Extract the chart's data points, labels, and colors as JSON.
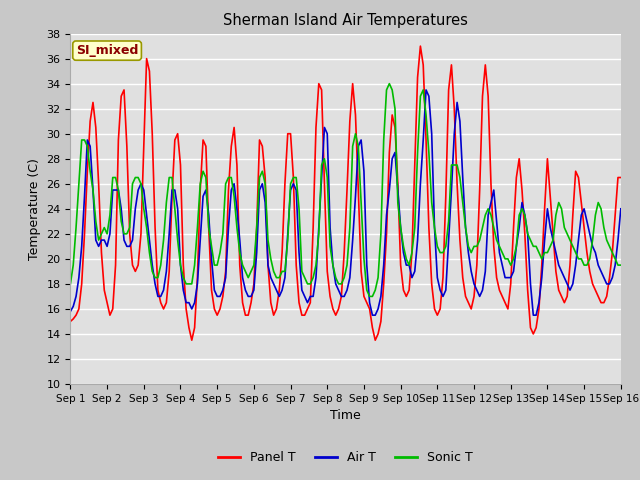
{
  "title": "Sherman Island Air Temperatures",
  "xlabel": "Time",
  "ylabel": "Temperature (C)",
  "ylim": [
    10,
    38
  ],
  "yticks": [
    10,
    12,
    14,
    16,
    18,
    20,
    22,
    24,
    26,
    28,
    30,
    32,
    34,
    36,
    38
  ],
  "xtick_labels": [
    "Sep 1",
    "Sep 2",
    "Sep 3",
    "Sep 4",
    "Sep 5",
    "Sep 6",
    "Sep 7",
    "Sep 8",
    "Sep 9",
    "Sep 10",
    "Sep 11",
    "Sep 12",
    "Sep 13",
    "Sep 14",
    "Sep 15",
    "Sep 16"
  ],
  "annotation_text": "SI_mixed",
  "annotation_color": "#8B0000",
  "annotation_bg": "#FFFFCC",
  "annotation_edge": "#999900",
  "colors": {
    "panel_t": "#FF0000",
    "air_t": "#0000CD",
    "sonic_t": "#00BB00"
  },
  "legend_labels": [
    "Panel T",
    "Air T",
    "Sonic T"
  ],
  "fig_bg": "#C8C8C8",
  "plot_bg": "#E0E0E0",
  "grid_color": "#FFFFFF",
  "line_width": 1.2,
  "panel_t": [
    15.0,
    15.2,
    15.5,
    16.0,
    18.0,
    22.0,
    27.0,
    31.0,
    32.5,
    30.5,
    26.0,
    20.5,
    17.5,
    16.5,
    15.5,
    16.0,
    19.5,
    29.5,
    33.0,
    33.5,
    29.0,
    22.0,
    19.5,
    19.0,
    19.5,
    22.0,
    29.0,
    36.0,
    35.0,
    30.0,
    22.5,
    17.5,
    16.5,
    16.0,
    16.5,
    19.0,
    25.0,
    29.5,
    30.0,
    27.5,
    19.5,
    16.0,
    14.5,
    13.5,
    14.5,
    18.5,
    25.5,
    29.5,
    29.0,
    22.5,
    17.5,
    16.0,
    15.5,
    16.0,
    17.0,
    19.0,
    25.5,
    29.0,
    30.5,
    27.5,
    19.5,
    16.5,
    15.5,
    15.5,
    16.5,
    18.0,
    22.5,
    29.5,
    29.0,
    26.5,
    19.5,
    16.5,
    15.5,
    16.0,
    17.5,
    20.5,
    26.0,
    30.0,
    30.0,
    26.5,
    19.5,
    16.5,
    15.5,
    15.5,
    16.0,
    16.5,
    22.5,
    30.5,
    34.0,
    33.5,
    26.0,
    19.0,
    17.0,
    16.0,
    15.5,
    16.0,
    17.0,
    20.5,
    25.5,
    31.0,
    34.0,
    31.5,
    25.5,
    19.0,
    17.0,
    16.5,
    16.0,
    14.5,
    13.5,
    14.0,
    15.0,
    18.0,
    22.0,
    28.5,
    31.5,
    30.5,
    26.0,
    19.5,
    17.5,
    17.0,
    17.5,
    20.5,
    27.5,
    34.5,
    37.0,
    35.5,
    29.5,
    22.5,
    18.0,
    16.0,
    15.5,
    16.0,
    18.5,
    25.0,
    33.5,
    35.5,
    32.0,
    26.0,
    21.5,
    18.5,
    17.0,
    16.5,
    16.0,
    17.0,
    19.5,
    25.5,
    33.0,
    35.5,
    33.0,
    26.0,
    21.0,
    18.5,
    17.5,
    17.0,
    16.5,
    16.0,
    18.0,
    22.5,
    26.5,
    28.0,
    25.5,
    22.0,
    17.5,
    14.5,
    14.0,
    14.5,
    16.0,
    19.5,
    24.0,
    28.0,
    25.0,
    22.0,
    19.0,
    17.5,
    17.0,
    16.5,
    17.0,
    19.5,
    23.5,
    27.0,
    26.5,
    24.5,
    22.5,
    20.5,
    19.0,
    18.0,
    17.5,
    17.0,
    16.5,
    16.5,
    17.0,
    18.5,
    20.5,
    23.5,
    26.5,
    26.5
  ],
  "air_t": [
    15.8,
    16.2,
    17.0,
    18.5,
    21.0,
    25.0,
    29.5,
    29.0,
    25.5,
    21.5,
    21.0,
    21.5,
    21.5,
    21.0,
    22.0,
    25.5,
    25.5,
    25.5,
    24.0,
    21.5,
    21.0,
    21.0,
    21.5,
    24.0,
    25.5,
    26.0,
    25.5,
    23.5,
    21.5,
    19.5,
    18.0,
    17.0,
    17.0,
    17.5,
    19.0,
    22.0,
    25.5,
    25.5,
    24.0,
    19.5,
    17.5,
    16.5,
    16.5,
    16.0,
    16.5,
    18.0,
    21.5,
    25.0,
    25.5,
    23.5,
    20.0,
    17.5,
    17.0,
    17.0,
    17.5,
    18.5,
    22.5,
    25.5,
    26.0,
    24.0,
    21.5,
    18.5,
    17.5,
    17.0,
    17.0,
    17.5,
    20.5,
    25.5,
    26.0,
    24.5,
    19.5,
    18.5,
    18.0,
    17.5,
    17.0,
    17.5,
    18.5,
    22.0,
    25.5,
    26.0,
    25.5,
    20.5,
    17.5,
    17.0,
    16.5,
    17.0,
    17.0,
    18.5,
    22.5,
    26.5,
    30.5,
    30.0,
    22.5,
    19.5,
    18.0,
    17.5,
    17.0,
    17.0,
    17.5,
    18.5,
    21.5,
    25.0,
    29.0,
    29.5,
    27.0,
    19.5,
    16.5,
    15.5,
    15.5,
    16.0,
    17.0,
    19.5,
    23.5,
    25.5,
    28.0,
    28.5,
    25.5,
    22.5,
    20.5,
    19.5,
    19.5,
    18.5,
    19.0,
    21.5,
    26.0,
    29.5,
    33.5,
    33.0,
    30.0,
    22.5,
    18.5,
    17.5,
    17.0,
    17.5,
    21.5,
    25.5,
    30.0,
    32.5,
    31.0,
    26.5,
    22.5,
    20.5,
    19.0,
    18.0,
    17.5,
    17.0,
    17.5,
    19.0,
    23.5,
    24.5,
    25.5,
    23.0,
    20.5,
    19.5,
    18.5,
    18.5,
    18.5,
    19.0,
    21.0,
    22.5,
    24.5,
    23.5,
    22.0,
    18.0,
    15.5,
    15.5,
    16.5,
    18.5,
    21.5,
    24.0,
    22.5,
    21.5,
    20.5,
    19.5,
    19.0,
    18.5,
    18.0,
    17.5,
    18.0,
    19.5,
    21.5,
    23.5,
    24.0,
    23.0,
    22.0,
    21.0,
    20.5,
    19.5,
    19.0,
    18.5,
    18.0,
    18.0,
    18.5,
    19.5,
    21.5,
    24.0
  ],
  "sonic_t": [
    18.0,
    19.5,
    22.5,
    26.0,
    29.5,
    29.5,
    29.0,
    27.0,
    25.5,
    23.0,
    21.5,
    22.0,
    22.5,
    22.0,
    23.5,
    26.5,
    26.5,
    25.5,
    23.0,
    22.0,
    22.0,
    22.5,
    26.0,
    26.5,
    26.5,
    26.0,
    24.0,
    22.5,
    20.5,
    19.0,
    18.5,
    18.5,
    19.5,
    21.5,
    24.5,
    26.5,
    26.5,
    24.0,
    21.5,
    19.5,
    18.5,
    18.0,
    18.0,
    18.0,
    19.5,
    22.5,
    26.0,
    27.0,
    26.5,
    22.5,
    21.0,
    19.5,
    19.5,
    20.5,
    22.0,
    26.0,
    26.5,
    26.5,
    25.0,
    22.5,
    20.5,
    19.5,
    19.0,
    18.5,
    19.0,
    19.5,
    22.5,
    26.5,
    27.0,
    26.0,
    21.5,
    20.0,
    19.0,
    18.5,
    18.5,
    19.0,
    19.0,
    21.5,
    26.0,
    26.5,
    26.5,
    24.0,
    19.0,
    18.5,
    18.0,
    18.0,
    18.5,
    19.5,
    22.0,
    27.5,
    28.0,
    26.5,
    21.0,
    19.5,
    18.5,
    18.0,
    18.0,
    18.5,
    19.5,
    22.5,
    29.0,
    30.0,
    29.0,
    24.5,
    20.0,
    17.5,
    17.0,
    17.0,
    17.5,
    18.5,
    22.0,
    29.5,
    33.5,
    34.0,
    33.5,
    32.0,
    24.5,
    22.5,
    21.0,
    20.0,
    19.5,
    20.5,
    22.5,
    28.5,
    33.0,
    33.5,
    31.5,
    28.5,
    24.5,
    22.5,
    21.0,
    20.5,
    20.5,
    21.0,
    23.0,
    27.5,
    27.5,
    27.5,
    26.5,
    24.5,
    22.5,
    21.0,
    20.5,
    21.0,
    21.0,
    21.5,
    22.5,
    23.5,
    24.0,
    23.5,
    22.5,
    21.5,
    21.0,
    20.5,
    20.0,
    20.0,
    19.5,
    20.0,
    21.0,
    23.5,
    24.0,
    23.5,
    22.0,
    21.5,
    21.0,
    21.0,
    20.5,
    20.0,
    20.5,
    20.5,
    21.0,
    21.5,
    23.5,
    24.5,
    24.0,
    22.5,
    22.0,
    21.5,
    21.0,
    20.5,
    20.0,
    20.0,
    19.5,
    19.5,
    20.0,
    21.5,
    23.5,
    24.5,
    24.0,
    22.5,
    21.5,
    21.0,
    20.5,
    20.0,
    19.5,
    19.5
  ]
}
